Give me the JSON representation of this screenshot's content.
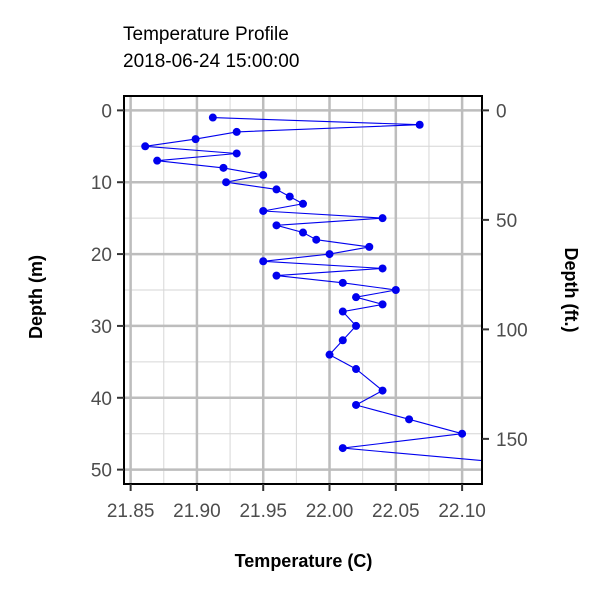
{
  "chart_data": {
    "type": "line",
    "title": "Temperature Profile",
    "subtitle": "2018-06-24 15:00:00",
    "xlabel": "Temperature (C)",
    "ylabel": "Depth (m)",
    "ylabel_right": "Depth (ft.)",
    "xlim": [
      21.845,
      22.115
    ],
    "ylim": [
      -2,
      52
    ],
    "y_reversed": true,
    "x_ticks": [
      21.85,
      21.9,
      21.95,
      22.0,
      22.05,
      22.1
    ],
    "x_tick_labels": [
      "21.85",
      "21.90",
      "21.95",
      "22.00",
      "22.05",
      "22.10"
    ],
    "y_ticks": [
      0,
      10,
      20,
      30,
      40,
      50
    ],
    "y_tick_labels": [
      "0",
      "10",
      "20",
      "30",
      "40",
      "50"
    ],
    "y2_ticks_ft": [
      0,
      50,
      100,
      150
    ],
    "y2_tick_labels": [
      "0",
      "50",
      "100",
      "150"
    ],
    "grid": true,
    "legend": "none",
    "series_color": "#0000ee",
    "series": [
      {
        "x": [
          21.912,
          22.068,
          21.93,
          21.899,
          21.861,
          21.93,
          21.87,
          21.92,
          21.95,
          21.922,
          21.96,
          21.97,
          21.98,
          21.95,
          22.04,
          21.96,
          21.98,
          21.99,
          22.03,
          22.0,
          21.95,
          22.04,
          21.96,
          22.01,
          22.05,
          22.02,
          22.04,
          22.01,
          22.02,
          22.01,
          22.0,
          22.02,
          22.04,
          22.02,
          22.06,
          22.1,
          22.01,
          22.13
        ],
        "y": [
          1,
          2,
          3,
          4,
          5,
          6,
          7,
          8,
          9,
          10,
          11,
          12,
          13,
          14,
          15,
          16,
          17,
          18,
          19,
          20,
          21,
          22,
          23,
          24,
          25,
          26,
          27,
          28,
          30,
          32,
          34,
          36,
          39,
          41,
          43,
          45,
          47,
          49
        ]
      }
    ]
  }
}
